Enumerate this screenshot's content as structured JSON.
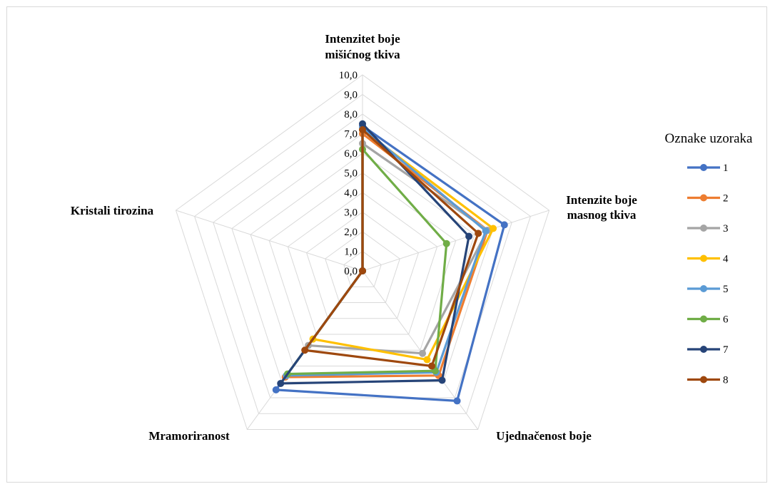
{
  "chart_data": {
    "type": "radar",
    "title": "",
    "axes": [
      [
        "Intenzitet boje",
        "mišićnog tkiva"
      ],
      [
        "Intenzite boje",
        "masnog tkiva"
      ],
      [
        "Ujednačenost boje"
      ],
      [
        "Mramoriranost"
      ],
      [
        "Kristali  tirozina"
      ]
    ],
    "range": [
      0,
      10
    ],
    "ticks": [
      "0,0",
      "1,0",
      "2,0",
      "3,0",
      "4,0",
      "5,0",
      "6,0",
      "7,0",
      "8,0",
      "9,0",
      "10,0"
    ],
    "grid": true,
    "legend": {
      "title": "Oznake uzoraka",
      "position": "right"
    },
    "series": [
      {
        "name": "1",
        "color": "#4472c4",
        "values": [
          7.4,
          7.6,
          8.2,
          7.5,
          0
        ]
      },
      {
        "name": "2",
        "color": "#ed7d31",
        "values": [
          7.0,
          6.7,
          6.6,
          6.7,
          0
        ]
      },
      {
        "name": "3",
        "color": "#a5a5a5",
        "values": [
          6.5,
          6.7,
          5.2,
          4.7,
          0
        ]
      },
      {
        "name": "4",
        "color": "#ffc000",
        "values": [
          7.2,
          7.0,
          5.6,
          4.3,
          0
        ]
      },
      {
        "name": "5",
        "color": "#5b9bd5",
        "values": [
          7.3,
          6.6,
          6.4,
          6.6,
          0
        ]
      },
      {
        "name": "6",
        "color": "#70ad47",
        "values": [
          6.2,
          4.5,
          6.3,
          6.5,
          0
        ]
      },
      {
        "name": "7",
        "color": "#264478",
        "values": [
          7.5,
          5.7,
          6.9,
          7.1,
          0
        ]
      },
      {
        "name": "8",
        "color": "#9e480e",
        "values": [
          7.2,
          6.2,
          6.0,
          5.0,
          0
        ]
      }
    ]
  }
}
